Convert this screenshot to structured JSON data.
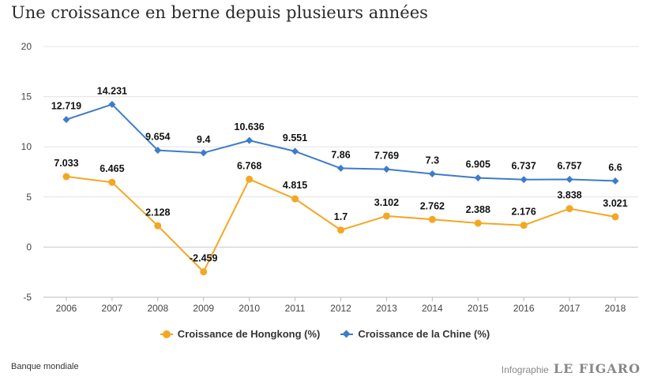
{
  "title": "Une croissance en berne depuis plusieurs années",
  "source": "Banque mondiale",
  "credit": {
    "label": "Infographie",
    "brand": "LE FIGARO"
  },
  "chart_data": {
    "type": "line",
    "categories": [
      "2006",
      "2007",
      "2008",
      "2009",
      "2010",
      "2011",
      "2012",
      "2013",
      "2014",
      "2015",
      "2016",
      "2017",
      "2018"
    ],
    "ylim": [
      -5,
      20
    ],
    "yticks": [
      "-5",
      "0",
      "5",
      "10",
      "15",
      "20"
    ],
    "grid": true,
    "legend_position": "bottom",
    "series": [
      {
        "name": "Croissance de Hongkong (%)",
        "color": "#f5a623",
        "marker": "circle",
        "values": [
          7.033,
          6.465,
          2.128,
          -2.459,
          6.768,
          4.815,
          1.7,
          3.102,
          2.762,
          2.388,
          2.176,
          3.838,
          3.021
        ],
        "labels": [
          "7.033",
          "6.465",
          "2.128",
          "-2.459",
          "6.768",
          "4.815",
          "1.7",
          "3.102",
          "2.762",
          "2.388",
          "2.176",
          "3.838",
          "3.021"
        ]
      },
      {
        "name": "Croissance de la Chine (%)",
        "color": "#3d7cc9",
        "marker": "diamond",
        "values": [
          12.719,
          14.231,
          9.654,
          9.4,
          10.636,
          9.551,
          7.86,
          7.769,
          7.3,
          6.905,
          6.737,
          6.757,
          6.6
        ],
        "labels": [
          "12.719",
          "14.231",
          "9.654",
          "9.4",
          "10.636",
          "9.551",
          "7.86",
          "7.769",
          "7.3",
          "6.905",
          "6.737",
          "6.757",
          "6.6"
        ]
      }
    ]
  }
}
